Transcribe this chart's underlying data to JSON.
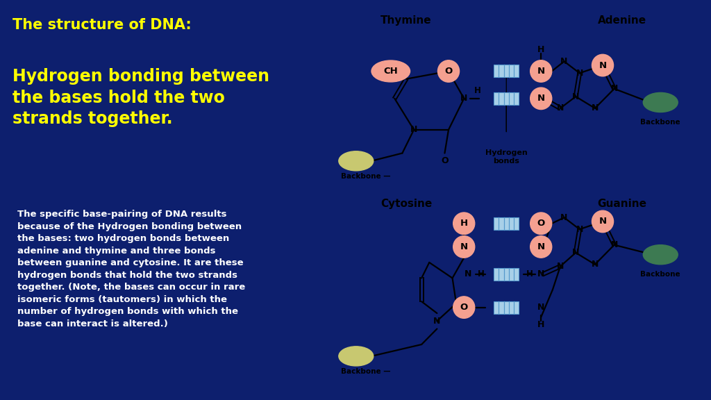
{
  "bg_color": "#0d1f6e",
  "right_panel_color": "#ffffff",
  "title_color": "#ffff00",
  "subtitle_color": "#ffff00",
  "body_color": "#ffffff",
  "title": "The structure of DNA:",
  "subtitle": "Hydrogen bonding between\nthe bases hold the two\nstrands together.",
  "body_text": "The specific base-pairing of DNA results\nbecause of the Hydrogen bonding between\nthe bases: two hydrogen bonds between\nadenine and thymine and three bonds\nbetween guanine and cytosine. It are these\nhydrogen bonds that hold the two strands\ntogether. (Note, the bases can occur in rare\nisomeric forms (tautomers) in which the\nnumber of hydrogen bonds with which the\nbase can interact is altered.)",
  "salmon_color": "#f4a090",
  "green_color": "#3d7a52",
  "olive_color": "#c8c870",
  "blue_hbond_color": "#a8d0e8",
  "bond_line_color": "#5599cc",
  "text_color": "#000000"
}
